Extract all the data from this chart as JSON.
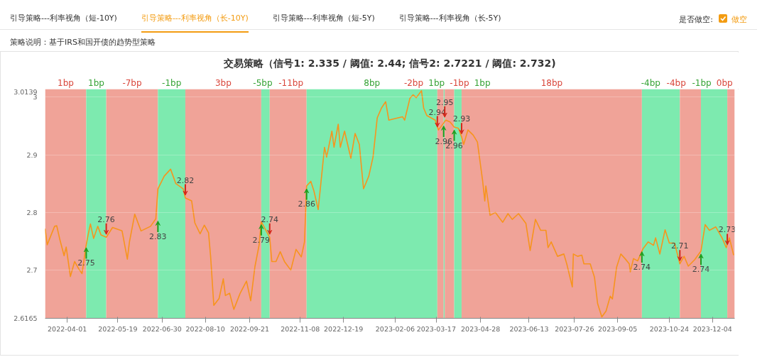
{
  "chart_data": {
    "type": "line",
    "title": "交易策略（信号1: 2.335 / 阈值: 2.44; 信号2: 2.7221 / 阈值: 2.732)",
    "annotations": [
      "引导策略---利率视角（短-10Y)",
      "引导策略---利率视角（长-10Y)",
      "引导策略---利率视角（短-5Y)",
      "引导策略---利率视角（长-5Y)",
      "是否做空:",
      "做空",
      "策略说明：基于IRS和国开债的趋势型策略",
      {
        "text": "2.75",
        "x": "2022-04-19",
        "y": 2.744
      },
      {
        "text": "2.76",
        "x": "2022-05-08",
        "y": 2.757
      },
      {
        "text": "2.83",
        "x": "2022-06-26",
        "y": 2.79
      },
      {
        "text": "2.82",
        "x": "2022-07-22",
        "y": 2.825
      },
      {
        "text": "2.79",
        "x": "2022-10-02",
        "y": 2.784
      },
      {
        "text": "2.74",
        "x": "2022-10-10",
        "y": 2.757
      },
      {
        "text": "2.86",
        "x": "2022-11-14",
        "y": 2.846
      },
      {
        "text": "2.94",
        "x": "2023-03-18",
        "y": 2.943
      },
      {
        "text": "2.96",
        "x": "2023-03-24",
        "y": 2.955
      },
      {
        "text": "2.95",
        "x": "2023-03-25",
        "y": 2.96
      },
      {
        "text": "2.96",
        "x": "2023-04-03",
        "y": 2.948
      },
      {
        "text": "2.93",
        "x": "2023-04-10",
        "y": 2.931
      },
      {
        "text": "2.74",
        "x": "2023-09-28",
        "y": 2.737
      },
      {
        "text": "2.71",
        "x": "2023-11-03",
        "y": 2.711
      },
      {
        "text": "2.74",
        "x": "2023-11-23",
        "y": 2.733
      },
      {
        "text": "2.73",
        "x": "2023-12-18",
        "y": 2.739
      }
    ],
    "xlim": [
      "2022-03-11",
      "2023-12-25"
    ],
    "ylim": [
      2.6165,
      3.0139
    ],
    "xticks": [
      "2022-04-01",
      "2022-05-19",
      "2022-06-30",
      "2022-08-10",
      "2022-09-21",
      "2022-11-08",
      "2022-12-19",
      "2023-02-06",
      "2023-03-17",
      "2023-04-28",
      "2023-06-13",
      "2023-07-26",
      "2023-09-05",
      "2023-10-24",
      "2023-12-04"
    ],
    "yticks": [
      2.6165,
      2.7,
      2.8,
      2.9,
      3,
      3.0139
    ],
    "grid": "y",
    "bands": [
      {
        "axis": "x",
        "from": "2022-03-11",
        "to": "2022-04-19",
        "label": "1bp",
        "color": "#f0a398"
      },
      {
        "axis": "x",
        "from": "2022-04-19",
        "to": "2022-05-08",
        "label": "1bp",
        "color": "#7deaaf"
      },
      {
        "axis": "x",
        "from": "2022-05-08",
        "to": "2022-06-26",
        "label": "-7bp",
        "color": "#f0a398"
      },
      {
        "axis": "x",
        "from": "2022-06-26",
        "to": "2022-07-22",
        "label": "-1bp",
        "color": "#7deaaf"
      },
      {
        "axis": "x",
        "from": "2022-07-22",
        "to": "2022-10-02",
        "label": "3bp",
        "color": "#f0a398"
      },
      {
        "axis": "x",
        "from": "2022-10-02",
        "to": "2022-10-10",
        "label": "-5bp",
        "color": "#7deaaf"
      },
      {
        "axis": "x",
        "from": "2022-10-10",
        "to": "2022-11-14",
        "label": "-11bp",
        "color": "#f0a398"
      },
      {
        "axis": "x",
        "from": "2022-11-14",
        "to": "2023-03-18",
        "label": "8bp",
        "color": "#7deaaf"
      },
      {
        "axis": "x",
        "from": "2023-03-18",
        "to": "2023-03-24",
        "label": "-2bp",
        "color": "#f0a398"
      },
      {
        "axis": "x",
        "from": "2023-03-24",
        "to": "2023-03-25",
        "label": "1bp",
        "color": "#7deaaf"
      },
      {
        "axis": "x",
        "from": "2023-03-25",
        "to": "2023-04-03",
        "label": "-1bp",
        "color": "#f0a398"
      },
      {
        "axis": "x",
        "from": "2023-04-03",
        "to": "2023-04-10",
        "label": "1bp",
        "color": "#7deaaf"
      },
      {
        "axis": "x",
        "from": "2023-04-10",
        "to": "2023-09-28",
        "label": "18bp",
        "color": "#f0a398"
      },
      {
        "axis": "x",
        "from": "2023-09-28",
        "to": "2023-11-03",
        "label": "-4bp",
        "color": "#7deaaf"
      },
      {
        "axis": "x",
        "from": "2023-11-03",
        "to": "2023-11-23",
        "label": "-4bp",
        "color": "#f0a398"
      },
      {
        "axis": "x",
        "from": "2023-11-23",
        "to": "2023-12-18",
        "label": "-1bp",
        "color": "#7deaaf"
      },
      {
        "axis": "x",
        "from": "2023-12-18",
        "to": "2023-12-25",
        "label": "0bp",
        "color": "#f0a398"
      }
    ],
    "series": [
      {
        "color": "#f7941d",
        "x": [
          "2022-03-11",
          "2022-03-13",
          "2022-03-20",
          "2022-03-22",
          "2022-03-25",
          "2022-03-29",
          "2022-03-31",
          "2022-04-04",
          "2022-04-08",
          "2022-04-12",
          "2022-04-15",
          "2022-04-19",
          "2022-04-21",
          "2022-04-23",
          "2022-04-26",
          "2022-04-30",
          "2022-05-03",
          "2022-05-08",
          "2022-05-14",
          "2022-05-23",
          "2022-05-28",
          "2022-05-30",
          "2022-06-04",
          "2022-06-10",
          "2022-06-19",
          "2022-06-24",
          "2022-06-26",
          "2022-07-02",
          "2022-07-08",
          "2022-07-13",
          "2022-07-20",
          "2022-07-22",
          "2022-07-28",
          "2022-07-31",
          "2022-08-05",
          "2022-08-09",
          "2022-08-13",
          "2022-08-15",
          "2022-08-18",
          "2022-08-23",
          "2022-08-27",
          "2022-08-29",
          "2022-09-02",
          "2022-09-06",
          "2022-09-12",
          "2022-09-18",
          "2022-09-22",
          "2022-09-26",
          "2022-09-30",
          "2022-10-02",
          "2022-10-10",
          "2022-10-12",
          "2022-10-16",
          "2022-10-20",
          "2022-10-24",
          "2022-10-30",
          "2022-11-04",
          "2022-11-09",
          "2022-11-12",
          "2022-11-14",
          "2022-11-18",
          "2022-11-21",
          "2022-11-25",
          "2022-12-01",
          "2022-12-03",
          "2022-12-08",
          "2022-12-10",
          "2022-12-14",
          "2022-12-16",
          "2022-12-20",
          "2022-12-26",
          "2022-12-30",
          "2023-01-03",
          "2023-01-07",
          "2023-01-12",
          "2023-01-16",
          "2023-01-20",
          "2023-01-24",
          "2023-01-28",
          "2023-01-31",
          "2023-02-04",
          "2023-02-13",
          "2023-02-15",
          "2023-02-20",
          "2023-02-23",
          "2023-02-26",
          "2023-03-03",
          "2023-03-05",
          "2023-03-08",
          "2023-03-12",
          "2023-03-16",
          "2023-03-19",
          "2023-03-24",
          "2023-03-26",
          "2023-03-30",
          "2023-04-03",
          "2023-04-07",
          "2023-04-10",
          "2023-04-12",
          "2023-04-16",
          "2023-04-21",
          "2023-04-25",
          "2023-04-30",
          "2023-05-02",
          "2023-05-03",
          "2023-05-07",
          "2023-05-12",
          "2023-05-19",
          "2023-05-24",
          "2023-05-28",
          "2023-06-03",
          "2023-06-10",
          "2023-06-14",
          "2023-06-19",
          "2023-06-24",
          "2023-06-29",
          "2023-07-01",
          "2023-07-04",
          "2023-07-10",
          "2023-07-16",
          "2023-07-19",
          "2023-07-24",
          "2023-07-25",
          "2023-07-29",
          "2023-08-02",
          "2023-08-04",
          "2023-08-10",
          "2023-08-14",
          "2023-08-17",
          "2023-08-21",
          "2023-08-25",
          "2023-08-29",
          "2023-08-31",
          "2023-09-04",
          "2023-09-08",
          "2023-09-12",
          "2023-09-16",
          "2023-09-17",
          "2023-09-20",
          "2023-09-24",
          "2023-09-29",
          "2023-10-04",
          "2023-10-09",
          "2023-10-11",
          "2023-10-15",
          "2023-10-20",
          "2023-10-24",
          "2023-10-29",
          "2023-11-03",
          "2023-11-07",
          "2023-11-11",
          "2023-11-17",
          "2023-11-23",
          "2023-11-27",
          "2023-12-01",
          "2023-12-07",
          "2023-12-13",
          "2023-12-17",
          "2023-12-20",
          "2023-12-24"
        ],
        "values": [
          2.772,
          2.744,
          2.776,
          2.777,
          2.753,
          2.725,
          2.74,
          2.689,
          2.715,
          2.702,
          2.694,
          2.744,
          2.763,
          2.78,
          2.755,
          2.776,
          2.761,
          2.757,
          2.774,
          2.768,
          2.719,
          2.749,
          2.797,
          2.768,
          2.776,
          2.789,
          2.841,
          2.863,
          2.875,
          2.85,
          2.841,
          2.825,
          2.82,
          2.782,
          2.763,
          2.778,
          2.765,
          2.723,
          2.639,
          2.651,
          2.685,
          2.656,
          2.66,
          2.632,
          2.66,
          2.681,
          2.647,
          2.706,
          2.744,
          2.784,
          2.757,
          2.715,
          2.715,
          2.732,
          2.715,
          2.7,
          2.736,
          2.723,
          2.749,
          2.846,
          2.854,
          2.837,
          2.805,
          2.913,
          2.896,
          2.941,
          2.913,
          2.953,
          2.913,
          2.941,
          2.894,
          2.937,
          2.918,
          2.841,
          2.863,
          2.896,
          2.964,
          2.981,
          2.992,
          2.96,
          2.962,
          2.966,
          2.96,
          2.998,
          3.004,
          2.999,
          3.011,
          2.981,
          2.968,
          2.964,
          2.96,
          2.943,
          2.955,
          2.96,
          2.957,
          2.948,
          2.946,
          2.931,
          2.918,
          2.943,
          2.934,
          2.922,
          2.854,
          2.82,
          2.846,
          2.795,
          2.8,
          2.783,
          2.798,
          2.788,
          2.798,
          2.781,
          2.734,
          2.788,
          2.769,
          2.769,
          2.739,
          2.749,
          2.724,
          2.728,
          2.709,
          2.671,
          2.728,
          2.724,
          2.726,
          2.711,
          2.711,
          2.688,
          2.642,
          2.619,
          2.629,
          2.655,
          2.65,
          2.705,
          2.728,
          2.72,
          2.711,
          2.697,
          2.72,
          2.716,
          2.737,
          2.749,
          2.743,
          2.756,
          2.728,
          2.77,
          2.747,
          2.747,
          2.711,
          2.724,
          2.707,
          2.718,
          2.733,
          2.779,
          2.769,
          2.775,
          2.756,
          2.739,
          2.756,
          2.726
        ]
      }
    ]
  }
}
